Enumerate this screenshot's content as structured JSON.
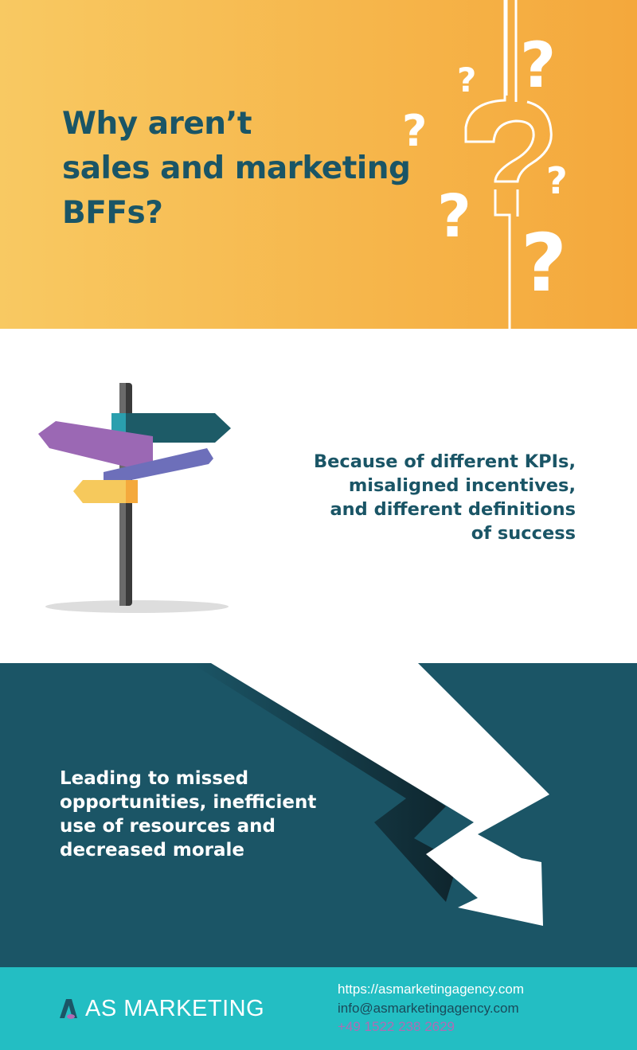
{
  "header": {
    "title_lines": [
      "Why aren’t",
      "sales and marketing",
      "BFFs?"
    ]
  },
  "reason": {
    "lines": [
      "Because of different KPIs,",
      "misaligned incentives,",
      "and different definitions",
      "of success"
    ]
  },
  "consequence": {
    "lines": [
      "Leading to missed",
      "opportunities, inefficient",
      "use of resources and",
      "decreased morale"
    ]
  },
  "footer": {
    "brand": "AS MARKETING",
    "website": "https://asmarketingagency.com",
    "email": "info@asmarketingagency.com",
    "phone": "+49 1522 238 2629"
  },
  "colors": {
    "title": "#1a5566",
    "orange": "#f6b54a",
    "teal_dark": "#1b5566",
    "teal_footer": "#23bec3",
    "phone": "#b06bb5"
  }
}
